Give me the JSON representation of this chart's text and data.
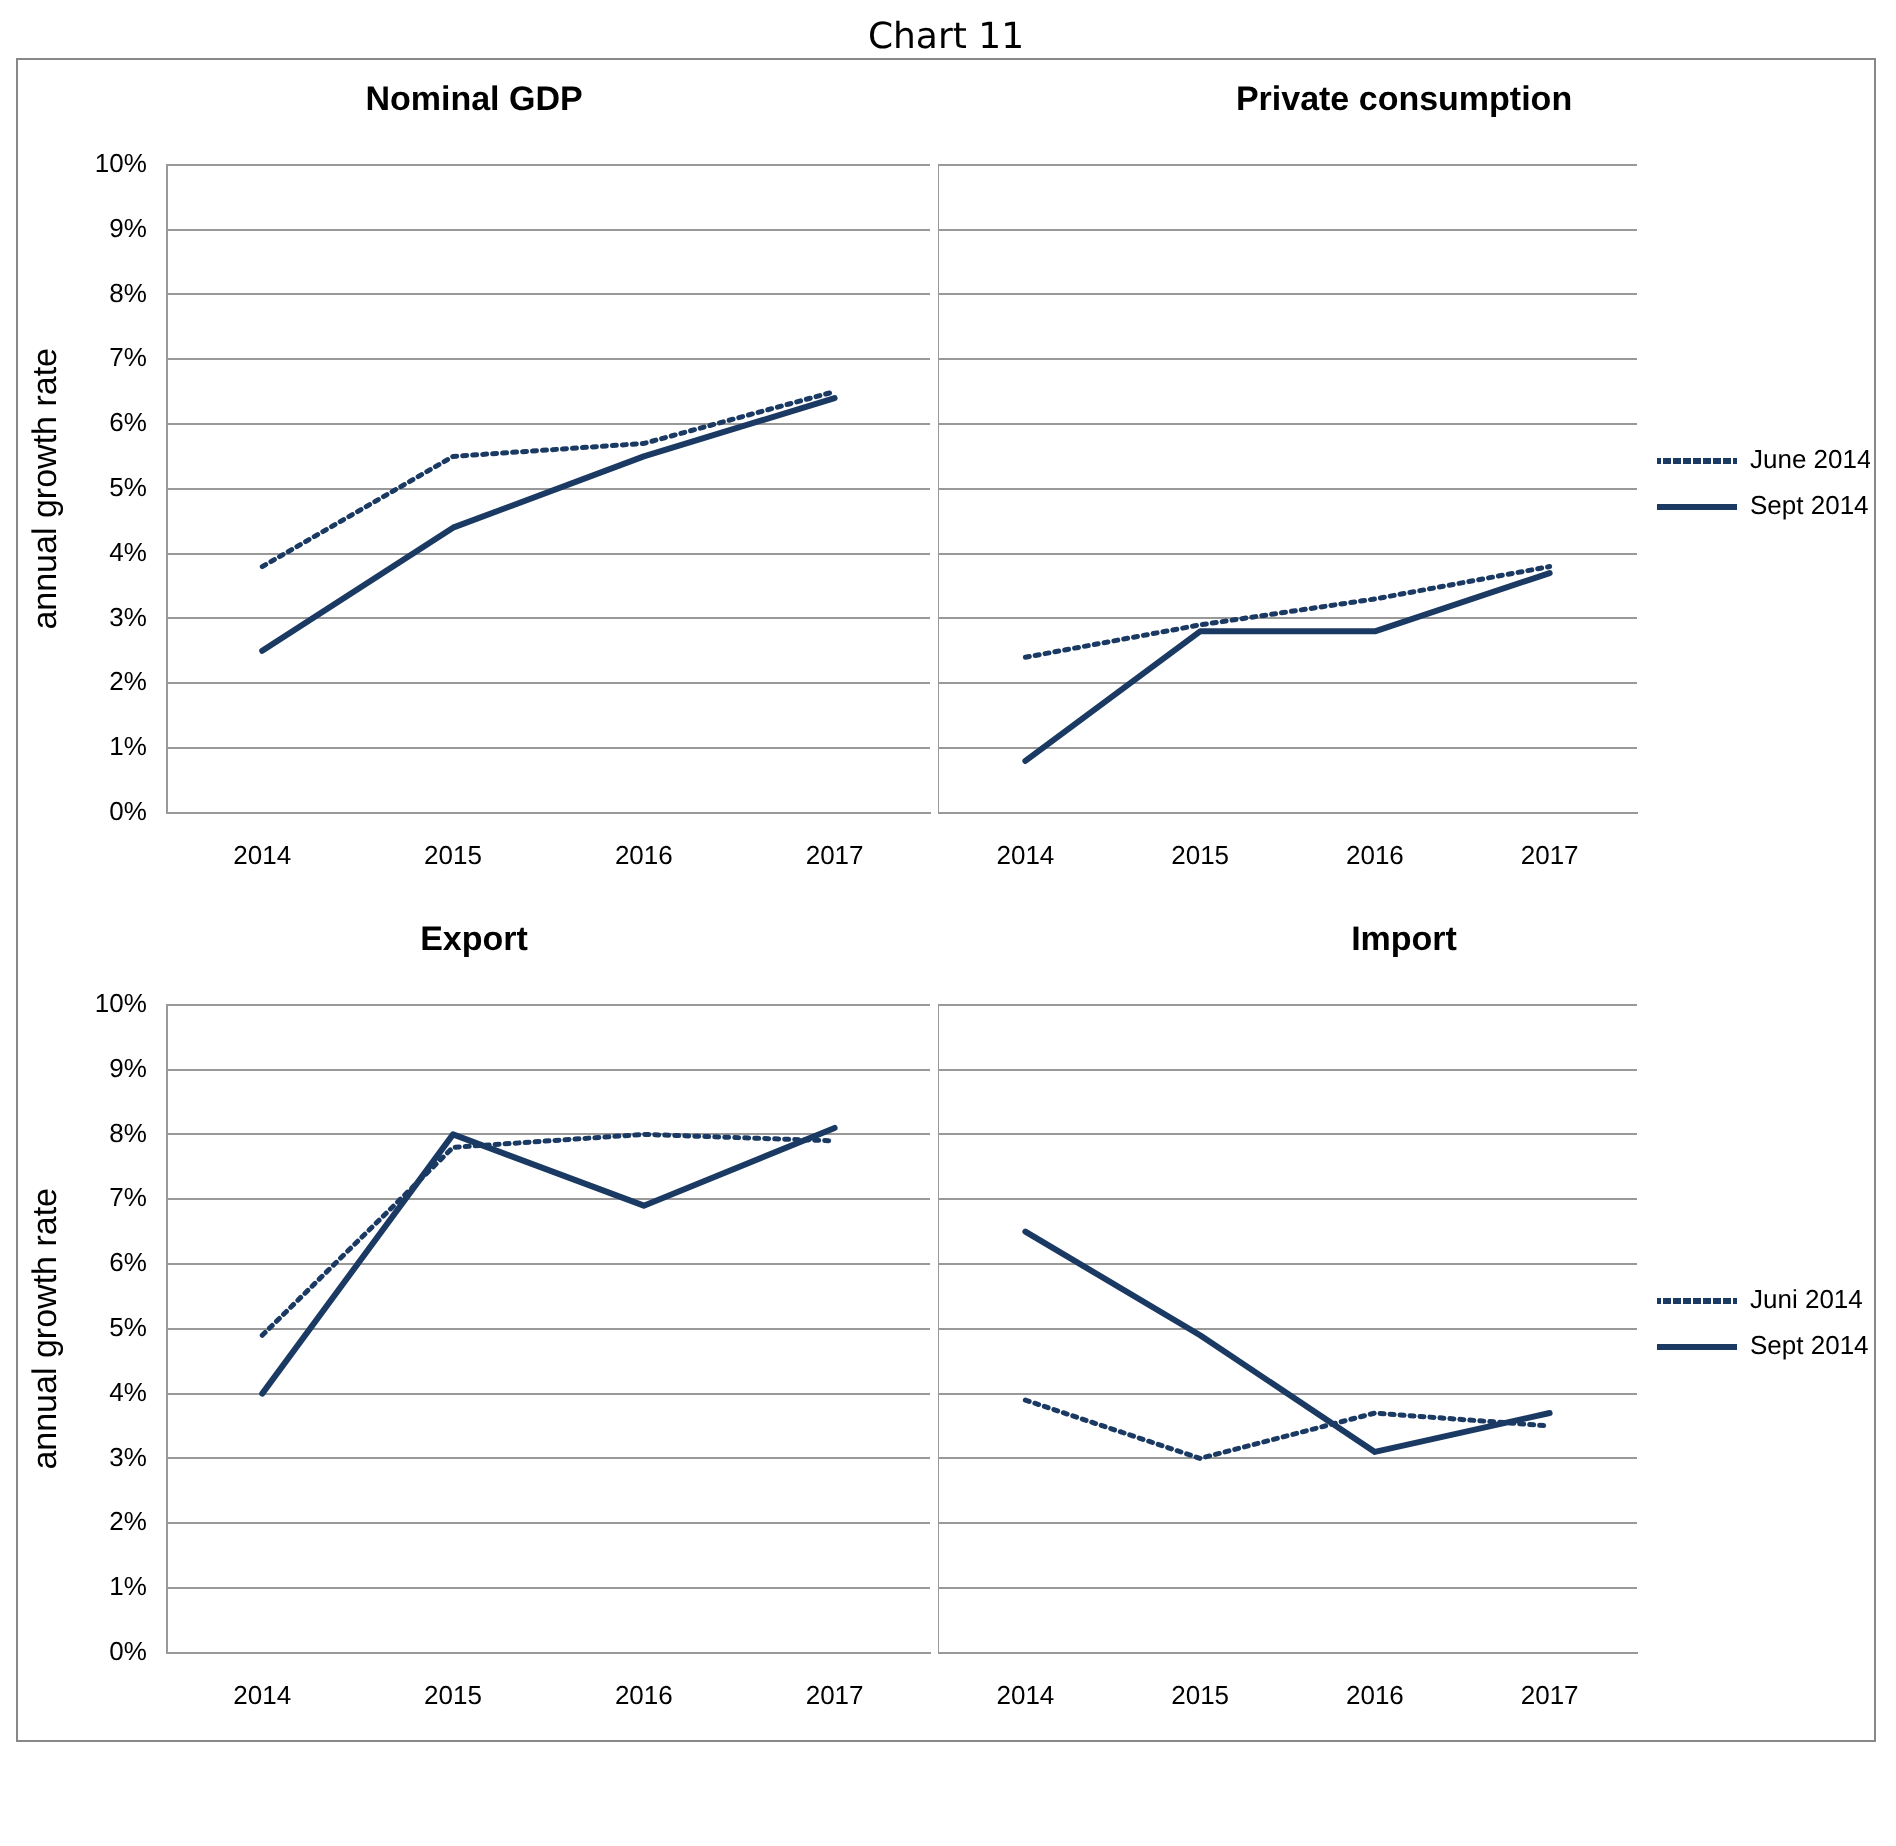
{
  "chart_data": [
    {
      "type": "line",
      "title": "Nominal GDP",
      "ylabel": "annual growth rate",
      "annotations": [
        "Chart 11"
      ],
      "categories": [
        "2014",
        "2015",
        "2016",
        "2017"
      ],
      "ylim": [
        0,
        10
      ],
      "yticks": [
        {
          "value": 0,
          "label": "0%"
        },
        {
          "value": 1,
          "label": "1%"
        },
        {
          "value": 2,
          "label": "2%"
        },
        {
          "value": 3,
          "label": "3%"
        },
        {
          "value": 4,
          "label": "4%"
        },
        {
          "value": 5,
          "label": "5%"
        },
        {
          "value": 6,
          "label": "6%"
        },
        {
          "value": 7,
          "label": "7%"
        },
        {
          "value": 8,
          "label": "8%"
        },
        {
          "value": 9,
          "label": "9%"
        },
        {
          "value": 10,
          "label": "10%"
        }
      ],
      "grid": "y",
      "legend": false,
      "marker": "none",
      "series": [
        {
          "color": "#1b3a63",
          "line_style": "dotted",
          "values": [
            3.8,
            5.5,
            5.7,
            6.5
          ]
        },
        {
          "color": "#1b3a63",
          "line_style": "solid",
          "values": [
            2.5,
            4.4,
            5.5,
            6.4
          ]
        }
      ]
    },
    {
      "type": "line",
      "title": "Private consumption",
      "categories": [
        "2014",
        "2015",
        "2016",
        "2017"
      ],
      "ylim": [
        0,
        10
      ],
      "yticks": [
        0,
        1,
        2,
        3,
        4,
        5,
        6,
        7,
        8,
        9,
        10
      ],
      "tick_labels": "x",
      "grid": "y",
      "legend": "right",
      "marker": "none",
      "series": [
        {
          "name": "June 2014",
          "color": "#1b3a63",
          "line_style": "dotted",
          "values": [
            2.4,
            2.9,
            3.3,
            3.8
          ]
        },
        {
          "name": "Sept 2014",
          "color": "#1b3a63",
          "line_style": "solid",
          "values": [
            0.8,
            2.8,
            2.8,
            3.7
          ]
        }
      ]
    },
    {
      "type": "line",
      "title": "Export",
      "ylabel": "annual growth rate",
      "categories": [
        "2014",
        "2015",
        "2016",
        "2017"
      ],
      "ylim": [
        0,
        10
      ],
      "yticks": [
        {
          "value": 0,
          "label": "0%"
        },
        {
          "value": 1,
          "label": "1%"
        },
        {
          "value": 2,
          "label": "2%"
        },
        {
          "value": 3,
          "label": "3%"
        },
        {
          "value": 4,
          "label": "4%"
        },
        {
          "value": 5,
          "label": "5%"
        },
        {
          "value": 6,
          "label": "6%"
        },
        {
          "value": 7,
          "label": "7%"
        },
        {
          "value": 8,
          "label": "8%"
        },
        {
          "value": 9,
          "label": "9%"
        },
        {
          "value": 10,
          "label": "10%"
        }
      ],
      "grid": "y",
      "legend": false,
      "marker": "none",
      "series": [
        {
          "color": "#1b3a63",
          "line_style": "dotted",
          "values": [
            4.9,
            7.8,
            8.0,
            7.9
          ]
        },
        {
          "color": "#1b3a63",
          "line_style": "solid",
          "values": [
            4.0,
            8.0,
            6.9,
            8.1
          ]
        }
      ]
    },
    {
      "type": "line",
      "title": "Import",
      "categories": [
        "2014",
        "2015",
        "2016",
        "2017"
      ],
      "ylim": [
        0,
        10
      ],
      "yticks": [
        0,
        1,
        2,
        3,
        4,
        5,
        6,
        7,
        8,
        9,
        10
      ],
      "tick_labels": "x",
      "grid": "y",
      "legend": "right",
      "marker": "none",
      "series": [
        {
          "name": "Juni 2014",
          "color": "#1b3a63",
          "line_style": "dotted",
          "values": [
            3.9,
            3.0,
            3.7,
            3.5
          ]
        },
        {
          "name": "Sept 2014",
          "color": "#1b3a63",
          "line_style": "solid",
          "values": [
            6.5,
            4.9,
            3.1,
            3.7
          ]
        }
      ]
    }
  ]
}
